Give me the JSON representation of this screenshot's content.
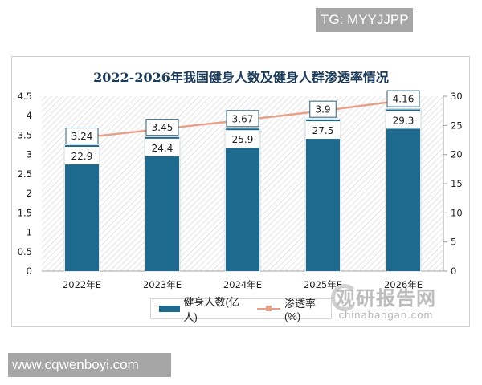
{
  "watermarks": {
    "top": "TG: MYYJJPP",
    "bottom": "www.cqwenboyi.com",
    "brand_cn": "观研报告网",
    "brand_en": "chinabaogao.com"
  },
  "colors": {
    "bar": "#1e6a8e",
    "line": "#e8a088",
    "title": "#1b3c5a"
  },
  "legend": {
    "bar_label": "健身人数(亿人)",
    "line_label": "渗透率(%)"
  },
  "chart_data": {
    "type": "bar",
    "title": "2022-2026年我国健身人数及健身人群渗透率情况",
    "categories": [
      "2022年E",
      "2023年E",
      "2024年E",
      "2025年E",
      "2026年E"
    ],
    "series": [
      {
        "name": "健身人数(亿人)",
        "type": "bar",
        "axis": "left",
        "values": [
          3.24,
          3.45,
          3.67,
          3.9,
          4.16
        ]
      },
      {
        "name": "渗透率(%)",
        "type": "line",
        "axis": "right",
        "values": [
          22.9,
          24.4,
          25.9,
          27.5,
          29.3
        ]
      }
    ],
    "bar_labels": [
      "3.24",
      "3.45",
      "3.67",
      "3.9",
      "4.16"
    ],
    "line_labels": [
      "22.9",
      "24.4",
      "25.9",
      "27.5",
      "29.3"
    ],
    "left_axis": {
      "ylim": [
        0,
        4.5
      ],
      "ticks": [
        "0",
        "0.5",
        "1",
        "1.5",
        "2",
        "2.5",
        "3",
        "3.5",
        "4",
        "4.5"
      ]
    },
    "right_axis": {
      "ylim": [
        0,
        30
      ],
      "ticks": [
        "0",
        "5",
        "10",
        "15",
        "20",
        "25",
        "30"
      ]
    },
    "xlabel": "",
    "ylabel": "",
    "grid": false,
    "legend_position": "bottom"
  }
}
